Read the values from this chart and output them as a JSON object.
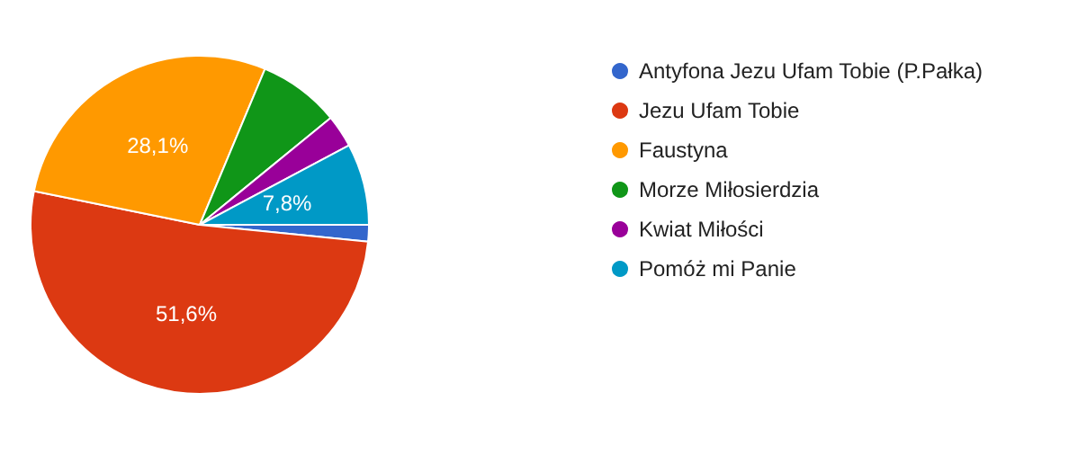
{
  "chart_data": {
    "type": "pie",
    "categories": [
      "Antyfona Jezu Ufam Tobie (P.Pałka)",
      "Jezu Ufam Tobie",
      "Faustyna",
      "Morze Miłosierdzia",
      "Kwiat Miłości",
      "Pomóż mi Panie"
    ],
    "values": [
      1.6,
      51.6,
      28.1,
      7.8,
      3.1,
      7.8
    ],
    "value_labels": [
      null,
      "51,6%",
      "28,1%",
      null,
      null,
      "7,8%"
    ],
    "colors": [
      "#3366cc",
      "#dc3912",
      "#ff9900",
      "#109618",
      "#990099",
      "#0099c6"
    ],
    "legend": "right"
  }
}
